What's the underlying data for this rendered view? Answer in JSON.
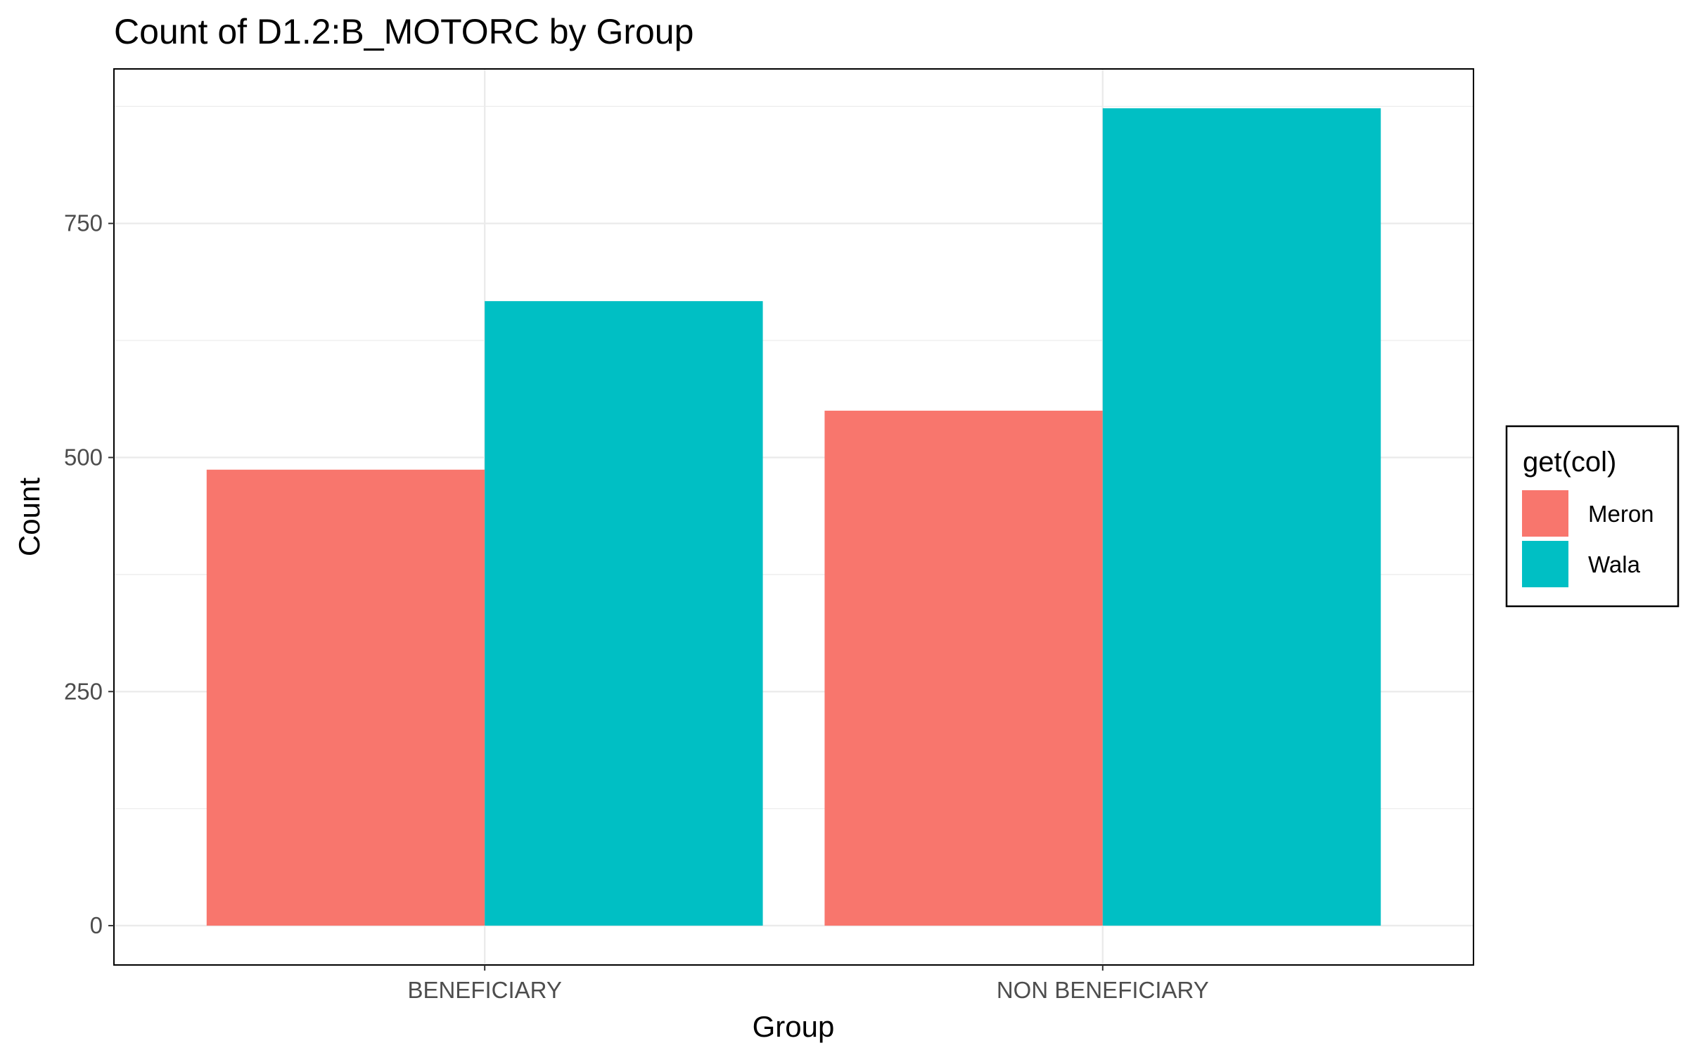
{
  "chart_data": {
    "type": "bar",
    "title": "Count of D1.2:B_MOTORC by Group",
    "xlabel": "Group",
    "ylabel": "Count",
    "categories": [
      "BENEFICIARY",
      "NON BENEFICIARY"
    ],
    "series": [
      {
        "name": "Meron",
        "values": [
          487,
          550
        ],
        "color": "#F8766D"
      },
      {
        "name": "Wala",
        "values": [
          667,
          873
        ],
        "color": "#00BFC4"
      }
    ],
    "ylim": [
      -42,
      915
    ],
    "yticks": [
      0,
      250,
      500,
      750
    ],
    "ytick_labels": [
      "0",
      "250",
      "500",
      "750"
    ],
    "grid": true,
    "legend": {
      "title": "get(col)",
      "position": "right"
    }
  }
}
